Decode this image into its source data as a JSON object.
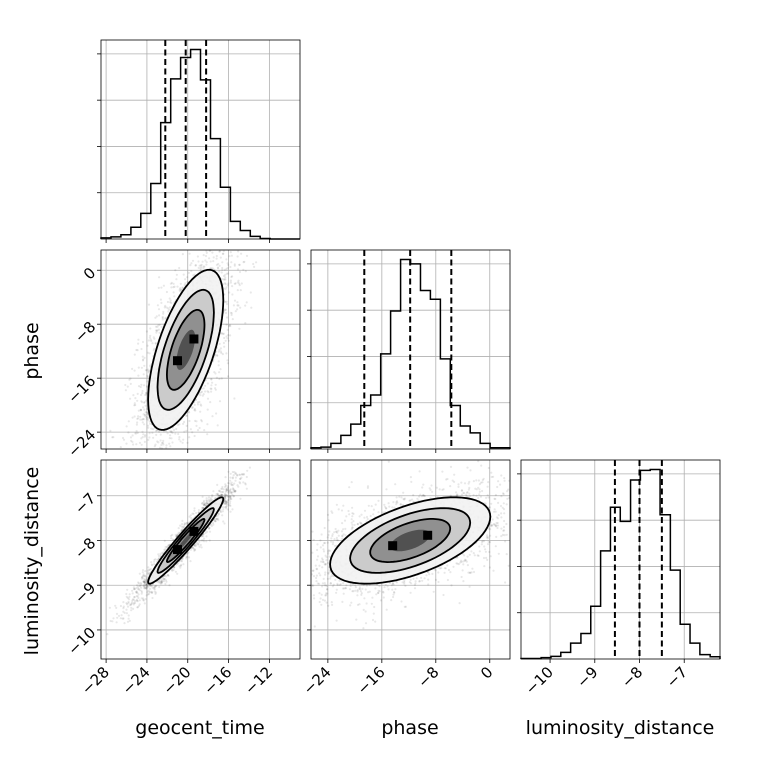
{
  "chart_data": {
    "type": "corner",
    "parameters": [
      "geocent_time",
      "phase",
      "luminosity_distance"
    ],
    "axis_labels": [
      "geocent_time",
      "phase",
      "luminosity_distance"
    ],
    "ranges": {
      "geocent_time": [
        -28.5,
        -9
      ],
      "phase": [
        -26.5,
        3
      ],
      "luminosity_distance": [
        -10.65,
        -6.2
      ]
    },
    "ticks": {
      "geocent_time": [
        "−28",
        "−24",
        "−20",
        "−16",
        "−12"
      ],
      "phase": [
        "−24",
        "−16",
        "−8",
        "0"
      ],
      "luminosity_distance": [
        "−10",
        "−9",
        "−8",
        "−7"
      ]
    },
    "tick_values": {
      "geocent_time": [
        -28,
        -24,
        -20,
        -16,
        -12
      ],
      "phase": [
        -24,
        -16,
        -8,
        0
      ],
      "luminosity_distance": [
        -10,
        -9,
        -8,
        -7
      ]
    },
    "quantiles": {
      "geocent_time": [
        -22.2,
        -20.2,
        -18.2
      ],
      "phase": [
        -18.6,
        -11.8,
        -5.7
      ],
      "luminosity_distance": [
        -8.55,
        -8.0,
        -7.5
      ]
    },
    "histograms": {
      "geocent_time": {
        "bin_edges": [
          -28.5,
          -27.52,
          -26.55,
          -25.57,
          -24.6,
          -23.62,
          -22.65,
          -21.67,
          -20.7,
          -19.72,
          -18.75,
          -17.77,
          -16.8,
          -15.82,
          -14.85,
          -13.87,
          -12.9,
          -11.92,
          -10.95,
          -9.97,
          -9
        ],
        "counts": [
          2,
          4,
          8,
          22,
          48,
          104,
          218,
          300,
          340,
          355,
          298,
          188,
          97,
          33,
          16,
          5,
          1,
          0,
          0,
          0
        ]
      },
      "phase": {
        "bin_edges": [
          -26.5,
          -25.02,
          -23.55,
          -22.07,
          -20.6,
          -19.12,
          -17.65,
          -16.17,
          -14.7,
          -13.22,
          -11.75,
          -10.27,
          -8.8,
          -7.32,
          -5.85,
          -4.37,
          -2.9,
          -1.42,
          0.05,
          1.52,
          3
        ],
        "counts": [
          2,
          3,
          9,
          22,
          40,
          70,
          87,
          153,
          222,
          305,
          298,
          255,
          241,
          145,
          70,
          37,
          26,
          9,
          2,
          2
        ]
      },
      "luminosity_distance": {
        "bin_edges": [
          -10.65,
          -10.43,
          -10.2,
          -9.98,
          -9.76,
          -9.54,
          -9.31,
          -9.09,
          -8.87,
          -8.65,
          -8.43,
          -8.2,
          -7.98,
          -7.76,
          -7.54,
          -7.31,
          -7.09,
          -6.87,
          -6.65,
          -6.42,
          -6.2
        ],
        "counts": [
          1,
          1,
          3,
          6,
          15,
          36,
          58,
          120,
          246,
          345,
          313,
          407,
          429,
          431,
          328,
          202,
          79,
          36,
          10,
          5
        ]
      }
    },
    "correlation": {
      "phase|geocent_time": 0.62,
      "luminosity_distance|geocent_time": 0.96,
      "luminosity_distance|phase": 0.55
    },
    "contour_levels": [
      0.118,
      0.393,
      0.675,
      0.865
    ],
    "grid": true
  }
}
